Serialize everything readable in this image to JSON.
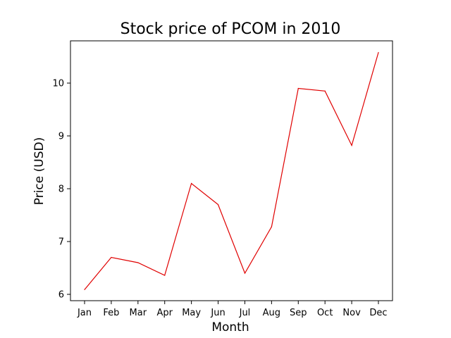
{
  "chart_data": {
    "type": "line",
    "title": "Stock price of PCOM in 2010",
    "xlabel": "Month",
    "ylabel": "Price (USD)",
    "categories": [
      "Jan",
      "Feb",
      "Mar",
      "Apr",
      "May",
      "Jun",
      "Jul",
      "Aug",
      "Sep",
      "Oct",
      "Nov",
      "Dec"
    ],
    "series": [
      {
        "values": [
          6.09,
          6.7,
          6.6,
          6.36,
          8.1,
          7.7,
          6.4,
          7.28,
          9.9,
          9.85,
          8.82,
          10.58
        ],
        "color": "#e00000"
      }
    ],
    "ylim": [
      5.88,
      10.8
    ],
    "yticks": [
      6,
      7,
      8,
      9,
      10
    ],
    "grid": false,
    "legend": "none"
  }
}
